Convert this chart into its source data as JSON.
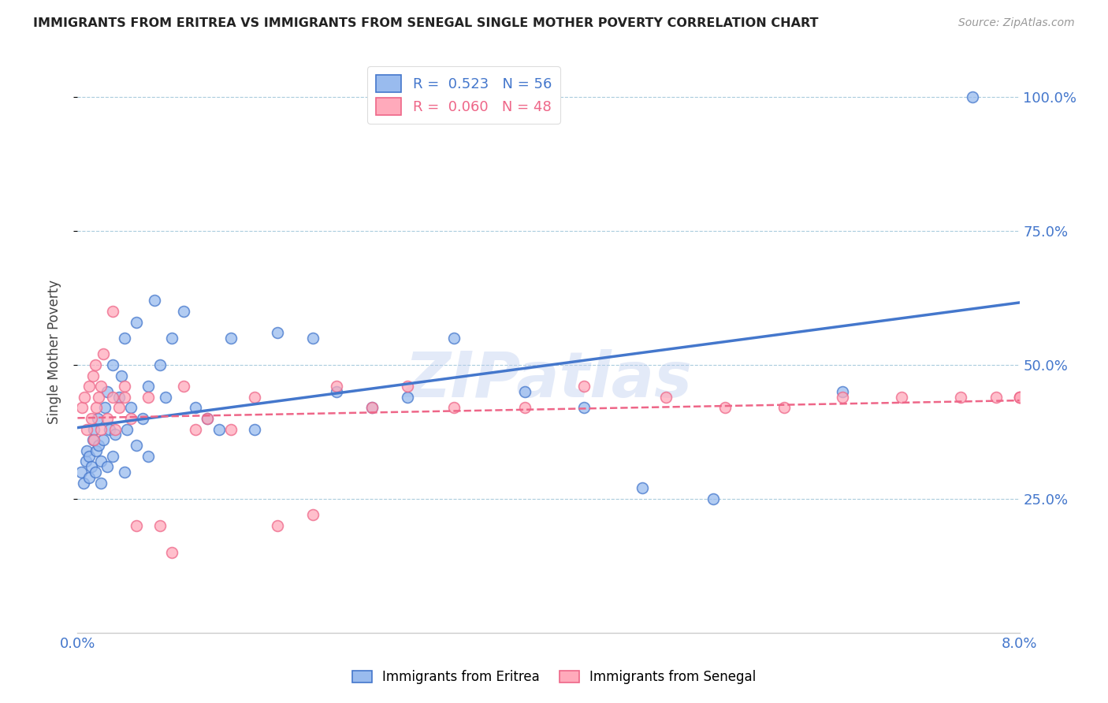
{
  "title": "IMMIGRANTS FROM ERITREA VS IMMIGRANTS FROM SENEGAL SINGLE MOTHER POVERTY CORRELATION CHART",
  "source": "Source: ZipAtlas.com",
  "xlabel_blue": "Immigrants from Eritrea",
  "xlabel_pink": "Immigrants from Senegal",
  "ylabel": "Single Mother Poverty",
  "xlim": [
    0.0,
    0.08
  ],
  "ylim": [
    0.0,
    1.05
  ],
  "ytick_vals": [
    0.25,
    0.5,
    0.75,
    1.0
  ],
  "ytick_labels": [
    "25.0%",
    "50.0%",
    "75.0%",
    "100.0%"
  ],
  "xtick_vals": [
    0.0,
    0.02,
    0.04,
    0.06,
    0.08
  ],
  "xtick_labels": [
    "0.0%",
    "",
    "",
    "",
    "8.0%"
  ],
  "blue_R": 0.523,
  "blue_N": 56,
  "pink_R": 0.06,
  "pink_N": 48,
  "blue_color": "#99BBEE",
  "pink_color": "#FFAABB",
  "blue_line_color": "#4477CC",
  "pink_line_color": "#EE6688",
  "watermark": "ZIPatlas",
  "watermark_color": "#BBCCEE",
  "blue_scatter_x": [
    0.0003,
    0.0005,
    0.0007,
    0.0008,
    0.001,
    0.001,
    0.0012,
    0.0013,
    0.0014,
    0.0015,
    0.0016,
    0.0017,
    0.0018,
    0.002,
    0.002,
    0.0022,
    0.0023,
    0.0025,
    0.0025,
    0.0027,
    0.003,
    0.003,
    0.0032,
    0.0035,
    0.0037,
    0.004,
    0.004,
    0.0042,
    0.0045,
    0.005,
    0.005,
    0.0055,
    0.006,
    0.006,
    0.0065,
    0.007,
    0.0075,
    0.008,
    0.009,
    0.01,
    0.011,
    0.012,
    0.013,
    0.015,
    0.017,
    0.02,
    0.022,
    0.025,
    0.028,
    0.032,
    0.038,
    0.043,
    0.048,
    0.054,
    0.065,
    0.076
  ],
  "blue_scatter_y": [
    0.3,
    0.28,
    0.32,
    0.34,
    0.29,
    0.33,
    0.31,
    0.36,
    0.38,
    0.3,
    0.34,
    0.4,
    0.35,
    0.28,
    0.32,
    0.36,
    0.42,
    0.31,
    0.45,
    0.38,
    0.33,
    0.5,
    0.37,
    0.44,
    0.48,
    0.3,
    0.55,
    0.38,
    0.42,
    0.35,
    0.58,
    0.4,
    0.33,
    0.46,
    0.62,
    0.5,
    0.44,
    0.55,
    0.6,
    0.42,
    0.4,
    0.38,
    0.55,
    0.38,
    0.56,
    0.55,
    0.45,
    0.42,
    0.44,
    0.55,
    0.45,
    0.42,
    0.27,
    0.25,
    0.45,
    1.0
  ],
  "pink_scatter_x": [
    0.0004,
    0.0006,
    0.0008,
    0.001,
    0.0012,
    0.0013,
    0.0014,
    0.0015,
    0.0016,
    0.0018,
    0.002,
    0.002,
    0.0022,
    0.0025,
    0.003,
    0.003,
    0.0032,
    0.0035,
    0.004,
    0.004,
    0.0045,
    0.005,
    0.006,
    0.007,
    0.008,
    0.009,
    0.01,
    0.011,
    0.013,
    0.015,
    0.017,
    0.02,
    0.022,
    0.025,
    0.028,
    0.032,
    0.038,
    0.043,
    0.05,
    0.055,
    0.06,
    0.065,
    0.07,
    0.075,
    0.078,
    0.08,
    0.08,
    0.08
  ],
  "pink_scatter_y": [
    0.42,
    0.44,
    0.38,
    0.46,
    0.4,
    0.48,
    0.36,
    0.5,
    0.42,
    0.44,
    0.38,
    0.46,
    0.52,
    0.4,
    0.44,
    0.6,
    0.38,
    0.42,
    0.46,
    0.44,
    0.4,
    0.2,
    0.44,
    0.2,
    0.15,
    0.46,
    0.38,
    0.4,
    0.38,
    0.44,
    0.2,
    0.22,
    0.46,
    0.42,
    0.46,
    0.42,
    0.42,
    0.46,
    0.44,
    0.42,
    0.42,
    0.44,
    0.44,
    0.44,
    0.44,
    0.44,
    0.44,
    0.44
  ]
}
